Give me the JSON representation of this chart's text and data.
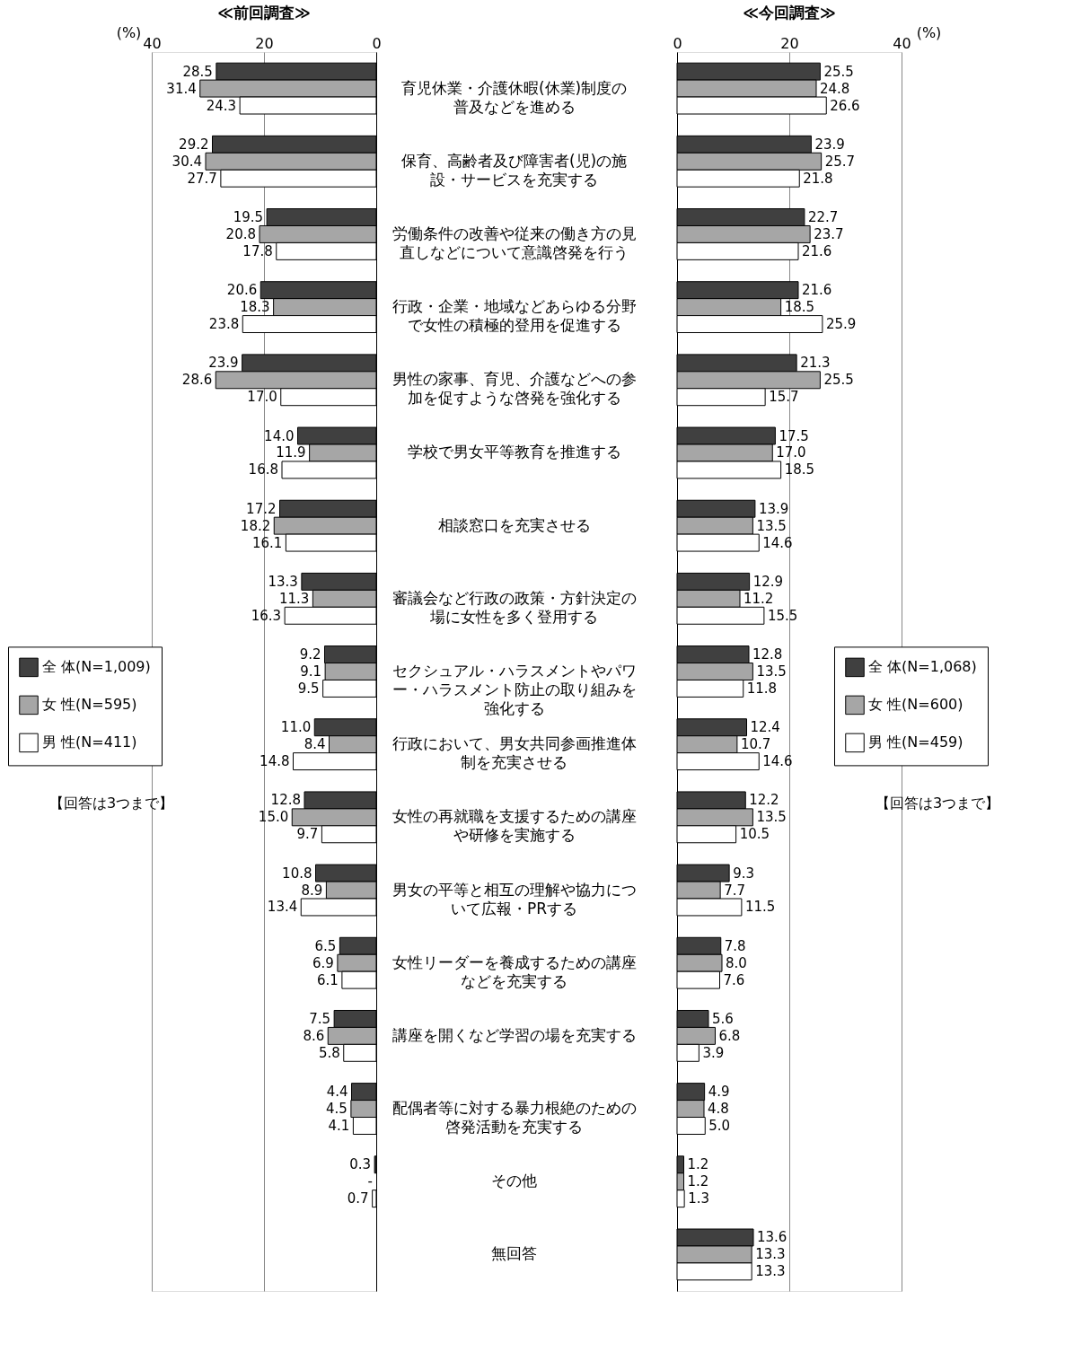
{
  "chart_data": [
    {
      "type": "bar",
      "orientation": "horizontal",
      "title": "≪前回調査≫",
      "xlabel": "(%)",
      "xlim": [
        40,
        0
      ],
      "xticks": [
        0,
        20,
        40
      ],
      "grid": "x",
      "legend": "left",
      "tick_labels": "x",
      "annotations": [
        "【回答は3つまで】"
      ],
      "categories": [
        "育児休業・介護休暇(休業)制度の普及などを進める",
        "保育、高齢者及び障害者(児)の施設・サービスを充実する",
        "労働条件の改善や従来の働き方の見直しなどについて意識啓発を行う",
        "行政・企業・地域などあらゆる分野で女性の積極的登用を促進する",
        "男性の家事、育児、介護などへの参加を促すような啓発を強化する",
        "学校で男女平等教育を推進する",
        "相談窓口を充実させる",
        "審議会など行政の政策・方針決定の場に女性を多く登用する",
        "セクシュアル・ハラスメントやパワー・ハラスメント防止の取り組みを強化する",
        "行政において、男女共同参画推進体制を充実させる",
        "女性の再就職を支援するための講座や研修を実施する",
        "男女の平等と相互の理解や協力について広報・PRする",
        "女性リーダーを養成するための講座などを充実する",
        "講座を開くなど学習の場を充実する",
        "配偶者等に対する暴力根絶のための啓発活動を充実する",
        "その他",
        "無回答"
      ],
      "series": [
        {
          "name": "全 体(N=1,009)",
          "color": "#404040",
          "values": [
            28.5,
            29.2,
            19.5,
            20.6,
            23.9,
            14.0,
            17.2,
            13.3,
            9.2,
            11.0,
            12.8,
            10.8,
            6.5,
            7.5,
            4.4,
            0.3,
            null
          ],
          "value_labels": [
            "28.5",
            "29.2",
            "19.5",
            "20.6",
            "23.9",
            "14.0",
            "17.2",
            "13.3",
            "9.2",
            "11.0",
            "12.8",
            "10.8",
            "6.5",
            "7.5",
            "4.4",
            "0.3",
            null
          ]
        },
        {
          "name": "女 性(N=595)",
          "color": "#a6a6a6",
          "values": [
            31.4,
            30.4,
            20.8,
            18.3,
            28.6,
            11.9,
            18.2,
            11.3,
            9.1,
            8.4,
            15.0,
            8.9,
            6.9,
            8.6,
            4.5,
            null,
            null
          ],
          "value_labels": [
            "31.4",
            "30.4",
            "20.8",
            "18.3",
            "28.6",
            "11.9",
            "18.2",
            "11.3",
            "9.1",
            "8.4",
            "15.0",
            "8.9",
            "6.9",
            "8.6",
            "4.5",
            "-",
            null
          ]
        },
        {
          "name": "男 性(N=411)",
          "color": "#ffffff",
          "values": [
            24.3,
            27.7,
            17.8,
            23.8,
            17.0,
            16.8,
            16.1,
            16.3,
            9.5,
            14.8,
            9.7,
            13.4,
            6.1,
            5.8,
            4.1,
            0.7,
            null
          ],
          "value_labels": [
            "24.3",
            "27.7",
            "17.8",
            "23.8",
            "17.0",
            "16.8",
            "16.1",
            "16.3",
            "9.5",
            "14.8",
            "9.7",
            "13.4",
            "6.1",
            "5.8",
            "4.1",
            "0.7",
            null
          ]
        }
      ]
    },
    {
      "type": "bar",
      "orientation": "horizontal",
      "title": "≪今回調査≫",
      "xlabel": "(%)",
      "xlim": [
        0,
        40
      ],
      "xticks": [
        0,
        20,
        40
      ],
      "grid": "x",
      "legend": "right",
      "annotations": [
        "【回答は3つまで】"
      ],
      "categories": [
        "育児休業・介護休暇(休業)制度の普及などを進める",
        "保育、高齢者及び障害者(児)の施設・サービスを充実する",
        "労働条件の改善や従来の働き方の見直しなどについて意識啓発を行う",
        "行政・企業・地域などあらゆる分野で女性の積極的登用を促進する",
        "男性の家事、育児、介護などへの参加を促すような啓発を強化する",
        "学校で男女平等教育を推進する",
        "相談窓口を充実させる",
        "審議会など行政の政策・方針決定の場に女性を多く登用する",
        "セクシュアル・ハラスメントやパワー・ハラスメント防止の取り組みを強化する",
        "行政において、男女共同参画推進体制を充実させる",
        "女性の再就職を支援するための講座や研修を実施する",
        "男女の平等と相互の理解や協力について広報・PRする",
        "女性リーダーを養成するための講座などを充実する",
        "講座を開くなど学習の場を充実する",
        "配偶者等に対する暴力根絶のための啓発活動を充実する",
        "その他",
        "無回答"
      ],
      "series": [
        {
          "name": "全 体(N=1,068)",
          "color": "#404040",
          "values": [
            25.5,
            23.9,
            22.7,
            21.6,
            21.3,
            17.5,
            13.9,
            12.9,
            12.8,
            12.4,
            12.2,
            9.3,
            7.8,
            5.6,
            4.9,
            1.2,
            13.6
          ],
          "value_labels": [
            "25.5",
            "23.9",
            "22.7",
            "21.6",
            "21.3",
            "17.5",
            "13.9",
            "12.9",
            "12.8",
            "12.4",
            "12.2",
            "9.3",
            "7.8",
            "5.6",
            "4.9",
            "1.2",
            "13.6"
          ]
        },
        {
          "name": "女 性(N=600)",
          "color": "#a6a6a6",
          "values": [
            24.8,
            25.7,
            23.7,
            18.5,
            25.5,
            17.0,
            13.5,
            11.2,
            13.5,
            10.7,
            13.5,
            7.7,
            8.0,
            6.8,
            4.8,
            1.2,
            13.3
          ],
          "value_labels": [
            "24.8",
            "25.7",
            "23.7",
            "18.5",
            "25.5",
            "17.0",
            "13.5",
            "11.2",
            "13.5",
            "10.7",
            "13.5",
            "7.7",
            "8.0",
            "6.8",
            "4.8",
            "1.2",
            "13.3"
          ]
        },
        {
          "name": "男 性(N=459)",
          "color": "#ffffff",
          "values": [
            26.6,
            21.8,
            21.6,
            25.9,
            15.7,
            18.5,
            14.6,
            15.5,
            11.8,
            14.6,
            10.5,
            11.5,
            7.6,
            3.9,
            5.0,
            1.3,
            13.3
          ],
          "value_labels": [
            "26.6",
            "21.8",
            "21.6",
            "25.9",
            "15.7",
            "18.5",
            "14.6",
            "15.5",
            "11.8",
            "14.6",
            "10.5",
            "11.5",
            "7.6",
            "3.9",
            "5.0",
            "1.3",
            "13.3"
          ]
        }
      ]
    }
  ]
}
